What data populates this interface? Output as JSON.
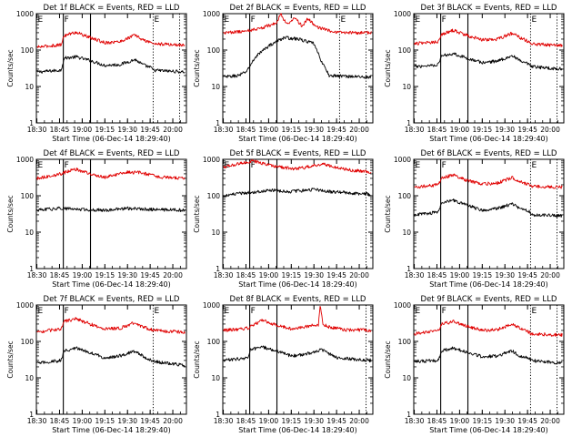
{
  "figure": {
    "background": "#ffffff",
    "colors": {
      "events": "#000000",
      "lld": "#e00000",
      "axes": "#000000"
    }
  },
  "chart_data": [
    {
      "type": "line",
      "title": "Det 1f BLACK = Events, RED = LLD",
      "xlabel": "Start Time (06-Dec-14 18:29:40)",
      "ylabel": "Counts/sec",
      "yscale": "log",
      "ylim": [
        1,
        1000
      ],
      "ytick_labels": [
        "1",
        "10",
        "100",
        "1000"
      ],
      "xlim": [
        "18:29:40",
        "20:09:00"
      ],
      "xtick_labels": [
        "18:30",
        "18:45",
        "19:00",
        "19:15",
        "19:30",
        "19:45",
        "20:00"
      ],
      "marks": {
        "solid": [
          "18:47:30",
          "19:05:30"
        ],
        "dotted": [
          "19:47:00",
          "20:04:30"
        ]
      },
      "flags": [
        {
          "label": "E",
          "time": "18:30:00"
        },
        {
          "label": "F",
          "time": "18:47:30"
        },
        {
          "label": "E",
          "time": "19:47:00"
        }
      ],
      "series": [
        {
          "name": "Events",
          "color": "#000000",
          "times": [
            "18:30",
            "18:46",
            "18:48",
            "18:56",
            "19:05",
            "19:15",
            "19:25",
            "19:35",
            "19:40",
            "19:46",
            "19:47",
            "20:08"
          ],
          "values": [
            25,
            28,
            60,
            65,
            52,
            38,
            40,
            55,
            40,
            32,
            28,
            25
          ]
        },
        {
          "name": "LLD",
          "color": "#e00000",
          "times": [
            "18:30",
            "18:46",
            "18:48",
            "18:56",
            "19:05",
            "19:15",
            "19:25",
            "19:35",
            "19:40",
            "19:46",
            "19:47",
            "20:08"
          ],
          "values": [
            120,
            140,
            250,
            310,
            220,
            160,
            170,
            260,
            190,
            160,
            150,
            135
          ]
        }
      ]
    },
    {
      "type": "line",
      "title": "Det 2f BLACK = Events, RED = LLD",
      "xlabel": "Start Time (06-Dec-14 18:29:40)",
      "ylabel": "Counts/sec",
      "yscale": "log",
      "ylim": [
        1,
        1000
      ],
      "ytick_labels": [
        "1",
        "10",
        "100",
        "1000"
      ],
      "xlim": [
        "18:29:40",
        "20:09:00"
      ],
      "xtick_labels": [
        "18:30",
        "18:45",
        "19:00",
        "19:15",
        "19:30",
        "19:45",
        "20:00"
      ],
      "marks": {
        "solid": [
          "18:47:30",
          "19:05:30"
        ],
        "dotted": [
          "19:47:00",
          "20:04:30"
        ]
      },
      "flags": [
        {
          "label": "E",
          "time": "18:30:00"
        },
        {
          "label": "F",
          "time": "18:47:30"
        },
        {
          "label": "E",
          "time": "19:47:00"
        }
      ],
      "series": [
        {
          "name": "Events",
          "color": "#000000",
          "times": [
            "18:30",
            "18:40",
            "18:45",
            "18:52",
            "19:00",
            "19:10",
            "19:20",
            "19:30",
            "19:34",
            "19:40",
            "20:08"
          ],
          "values": [
            18,
            20,
            25,
            70,
            130,
            220,
            200,
            150,
            60,
            20,
            18
          ]
        },
        {
          "name": "LLD",
          "color": "#e00000",
          "times": [
            "18:30",
            "18:45",
            "18:55",
            "19:05",
            "19:08",
            "19:12",
            "19:17",
            "19:22",
            "19:26",
            "19:32",
            "19:45",
            "20:08"
          ],
          "values": [
            300,
            330,
            400,
            550,
            1000,
            500,
            800,
            450,
            750,
            420,
            300,
            300
          ]
        }
      ]
    },
    {
      "type": "line",
      "title": "Det 3f BLACK = Events, RED = LLD",
      "xlabel": "Start Time (06-Dec-14 18:29:40)",
      "ylabel": "Counts/sec",
      "yscale": "log",
      "ylim": [
        1,
        1000
      ],
      "ytick_labels": [
        "1",
        "10",
        "100",
        "1000"
      ],
      "xlim": [
        "18:29:40",
        "20:09:00"
      ],
      "xtick_labels": [
        "18:30",
        "18:45",
        "19:00",
        "19:15",
        "19:30",
        "19:45",
        "20:00"
      ],
      "marks": {
        "solid": [
          "18:47:30",
          "19:05:30"
        ],
        "dotted": [
          "19:47:00",
          "20:04:30"
        ]
      },
      "flags": [
        {
          "label": "E",
          "time": "18:30:00"
        },
        {
          "label": "F",
          "time": "18:47:30"
        },
        {
          "label": "E",
          "time": "19:47:00"
        }
      ],
      "series": [
        {
          "name": "Events",
          "color": "#000000",
          "times": [
            "18:30",
            "18:46",
            "18:48",
            "18:56",
            "19:05",
            "19:15",
            "19:25",
            "19:35",
            "19:40",
            "19:46",
            "19:47",
            "20:08"
          ],
          "values": [
            35,
            40,
            70,
            80,
            60,
            45,
            50,
            70,
            50,
            40,
            35,
            30
          ]
        },
        {
          "name": "LLD",
          "color": "#e00000",
          "times": [
            "18:30",
            "18:46",
            "18:48",
            "18:56",
            "19:05",
            "19:15",
            "19:25",
            "19:35",
            "19:40",
            "19:46",
            "19:47",
            "20:08"
          ],
          "values": [
            150,
            170,
            270,
            350,
            250,
            190,
            200,
            290,
            220,
            170,
            150,
            130
          ]
        }
      ]
    },
    {
      "type": "line",
      "title": "Det 4f BLACK = Events, RED = LLD",
      "xlabel": "Start Time (06-Dec-14 18:29:40)",
      "ylabel": "Counts/sec",
      "yscale": "log",
      "ylim": [
        1,
        1000
      ],
      "ytick_labels": [
        "1",
        "10",
        "100",
        "1000"
      ],
      "xlim": [
        "18:29:40",
        "20:09:00"
      ],
      "xtick_labels": [
        "18:30",
        "18:45",
        "19:00",
        "19:15",
        "19:30",
        "19:45",
        "20:00"
      ],
      "marks": {
        "solid": [
          "18:47:30",
          "19:05:30"
        ],
        "dotted": []
      },
      "flags": [
        {
          "label": "E",
          "time": "18:30:00"
        },
        {
          "label": "F",
          "time": "18:47:30"
        }
      ],
      "series": [
        {
          "name": "Events",
          "color": "#000000",
          "times": [
            "18:30",
            "18:45",
            "19:00",
            "19:15",
            "19:30",
            "19:45",
            "20:08"
          ],
          "values": [
            40,
            45,
            42,
            40,
            45,
            42,
            40
          ]
        },
        {
          "name": "LLD",
          "color": "#e00000",
          "times": [
            "18:30",
            "18:46",
            "18:55",
            "19:05",
            "19:15",
            "19:30",
            "19:40",
            "19:50",
            "20:08"
          ],
          "values": [
            300,
            400,
            550,
            400,
            320,
            450,
            420,
            330,
            300
          ]
        }
      ]
    },
    {
      "type": "line",
      "title": "Det 5f BLACK = Events, RED = LLD",
      "xlabel": "Start Time (06-Dec-14 18:29:40)",
      "ylabel": "Counts/sec",
      "yscale": "log",
      "ylim": [
        1,
        1000
      ],
      "ytick_labels": [
        "1",
        "10",
        "100",
        "1000"
      ],
      "xlim": [
        "18:29:40",
        "20:09:00"
      ],
      "xtick_labels": [
        "18:30",
        "18:45",
        "19:00",
        "19:15",
        "19:30",
        "19:45",
        "20:00"
      ],
      "marks": {
        "solid": [
          "18:47:30",
          "19:05:30"
        ],
        "dotted": [
          "20:04:30"
        ]
      },
      "flags": [
        {
          "label": "E",
          "time": "18:30:00"
        },
        {
          "label": "F",
          "time": "18:47:30"
        }
      ],
      "series": [
        {
          "name": "Events",
          "color": "#000000",
          "times": [
            "18:30",
            "18:45",
            "19:00",
            "19:05",
            "19:15",
            "19:30",
            "19:40",
            "20:08"
          ],
          "values": [
            100,
            120,
            140,
            140,
            130,
            150,
            130,
            110
          ]
        },
        {
          "name": "LLD",
          "color": "#e00000",
          "times": [
            "18:30",
            "18:40",
            "18:50",
            "19:00",
            "19:05",
            "19:15",
            "19:25",
            "19:35",
            "19:45",
            "19:55",
            "20:08"
          ],
          "values": [
            600,
            750,
            900,
            700,
            650,
            550,
            600,
            750,
            600,
            500,
            450
          ]
        }
      ]
    },
    {
      "type": "line",
      "title": "Det 6f BLACK = Events, RED = LLD",
      "xlabel": "Start Time (06-Dec-14 18:29:40)",
      "ylabel": "Counts/sec",
      "yscale": "log",
      "ylim": [
        1,
        1000
      ],
      "ytick_labels": [
        "1",
        "10",
        "100",
        "1000"
      ],
      "xlim": [
        "18:29:40",
        "20:09:00"
      ],
      "xtick_labels": [
        "18:30",
        "18:45",
        "19:00",
        "19:15",
        "19:30",
        "19:45",
        "20:00"
      ],
      "marks": {
        "solid": [
          "18:47:30",
          "19:05:30"
        ],
        "dotted": [
          "19:47:00",
          "20:04:30"
        ]
      },
      "flags": [
        {
          "label": "E",
          "time": "18:30:00"
        },
        {
          "label": "F",
          "time": "18:47:30"
        },
        {
          "label": "E",
          "time": "19:47:00"
        }
      ],
      "series": [
        {
          "name": "Events",
          "color": "#000000",
          "times": [
            "18:30",
            "18:46",
            "18:48",
            "18:56",
            "19:05",
            "19:15",
            "19:25",
            "19:35",
            "19:40",
            "19:46",
            "19:47",
            "20:08"
          ],
          "values": [
            30,
            35,
            65,
            75,
            55,
            40,
            45,
            60,
            45,
            38,
            30,
            28
          ]
        },
        {
          "name": "LLD",
          "color": "#e00000",
          "times": [
            "18:30",
            "18:46",
            "18:48",
            "18:56",
            "19:05",
            "19:15",
            "19:25",
            "19:35",
            "19:40",
            "19:46",
            "19:47",
            "20:08"
          ],
          "values": [
            170,
            200,
            300,
            380,
            260,
            210,
            220,
            320,
            240,
            200,
            180,
            170
          ]
        }
      ]
    },
    {
      "type": "line",
      "title": "Det 7f BLACK = Events, RED = LLD",
      "xlabel": "Start Time (06-Dec-14 18:29:40)",
      "ylabel": "Counts/sec",
      "yscale": "log",
      "ylim": [
        1,
        1000
      ],
      "ytick_labels": [
        "1",
        "10",
        "100",
        "1000"
      ],
      "xlim": [
        "18:29:40",
        "20:09:00"
      ],
      "xtick_labels": [
        "18:30",
        "18:45",
        "19:00",
        "19:15",
        "19:30",
        "19:45",
        "20:00"
      ],
      "marks": {
        "solid": [
          "18:47:30"
        ],
        "dotted": [
          "19:47:00"
        ]
      },
      "flags": [
        {
          "label": "E",
          "time": "18:30:00"
        },
        {
          "label": "F",
          "time": "18:47:30"
        },
        {
          "label": "E",
          "time": "19:47:00"
        }
      ],
      "series": [
        {
          "name": "Events",
          "color": "#000000",
          "times": [
            "18:30",
            "18:46",
            "18:48",
            "18:56",
            "19:05",
            "19:15",
            "19:25",
            "19:35",
            "19:40",
            "19:46",
            "19:47",
            "20:08"
          ],
          "values": [
            25,
            30,
            55,
            65,
            50,
            35,
            40,
            55,
            40,
            30,
            28,
            22
          ]
        },
        {
          "name": "LLD",
          "color": "#e00000",
          "times": [
            "18:30",
            "18:46",
            "18:48",
            "18:56",
            "19:05",
            "19:15",
            "19:25",
            "19:35",
            "19:40",
            "19:46",
            "19:47",
            "20:08"
          ],
          "values": [
            180,
            220,
            350,
            420,
            300,
            220,
            230,
            330,
            250,
            210,
            200,
            180
          ]
        }
      ]
    },
    {
      "type": "line",
      "title": "Det 8f BLACK = Events, RED = LLD",
      "xlabel": "Start Time (06-Dec-14 18:29:40)",
      "ylabel": "Counts/sec",
      "yscale": "log",
      "ylim": [
        1,
        1000
      ],
      "ytick_labels": [
        "1",
        "10",
        "100",
        "1000"
      ],
      "xlim": [
        "18:29:40",
        "20:09:00"
      ],
      "xtick_labels": [
        "18:30",
        "18:45",
        "19:00",
        "19:15",
        "19:30",
        "19:45",
        "20:00"
      ],
      "marks": {
        "solid": [
          "18:47:30",
          "19:05:30"
        ],
        "dotted": [
          "20:04:30"
        ]
      },
      "flags": [
        {
          "label": "E",
          "time": "18:30:00"
        },
        {
          "label": "F",
          "time": "18:47:30"
        }
      ],
      "series": [
        {
          "name": "Events",
          "color": "#000000",
          "times": [
            "18:30",
            "18:46",
            "18:48",
            "18:56",
            "19:05",
            "19:15",
            "19:25",
            "19:35",
            "19:40",
            "19:46",
            "20:08"
          ],
          "values": [
            30,
            35,
            60,
            70,
            55,
            40,
            45,
            60,
            45,
            35,
            30
          ]
        },
        {
          "name": "LLD",
          "color": "#e00000",
          "times": [
            "18:30",
            "18:46",
            "18:56",
            "19:05",
            "19:15",
            "19:30",
            "19:33",
            "19:34",
            "19:36",
            "19:40",
            "19:50",
            "20:08"
          ],
          "values": [
            200,
            230,
            380,
            280,
            220,
            280,
            280,
            1000,
            300,
            250,
            210,
            200
          ]
        }
      ]
    },
    {
      "type": "line",
      "title": "Det 9f BLACK = Events, RED = LLD",
      "xlabel": "Start Time (06-Dec-14 18:29:40)",
      "ylabel": "Counts/sec",
      "yscale": "log",
      "ylim": [
        1,
        1000
      ],
      "ytick_labels": [
        "1",
        "10",
        "100",
        "1000"
      ],
      "xlim": [
        "18:29:40",
        "20:09:00"
      ],
      "xtick_labels": [
        "18:30",
        "18:45",
        "19:00",
        "19:15",
        "19:30",
        "19:45",
        "20:00"
      ],
      "marks": {
        "solid": [
          "18:47:30",
          "19:05:30"
        ],
        "dotted": [
          "19:47:00",
          "20:04:30"
        ]
      },
      "flags": [
        {
          "label": "E",
          "time": "18:30:00"
        },
        {
          "label": "F",
          "time": "18:47:30"
        },
        {
          "label": "E",
          "time": "19:47:00"
        }
      ],
      "series": [
        {
          "name": "Events",
          "color": "#000000",
          "times": [
            "18:30",
            "18:46",
            "18:48",
            "18:56",
            "19:05",
            "19:15",
            "19:25",
            "19:35",
            "19:40",
            "19:46",
            "19:47",
            "20:08"
          ],
          "values": [
            28,
            30,
            55,
            65,
            50,
            38,
            40,
            55,
            40,
            35,
            30,
            25
          ]
        },
        {
          "name": "LLD",
          "color": "#e00000",
          "times": [
            "18:30",
            "18:46",
            "18:48",
            "18:56",
            "19:05",
            "19:15",
            "19:25",
            "19:35",
            "19:40",
            "19:46",
            "19:47",
            "20:08"
          ],
          "values": [
            160,
            200,
            300,
            350,
            260,
            200,
            210,
            300,
            230,
            180,
            160,
            150
          ]
        }
      ]
    }
  ]
}
